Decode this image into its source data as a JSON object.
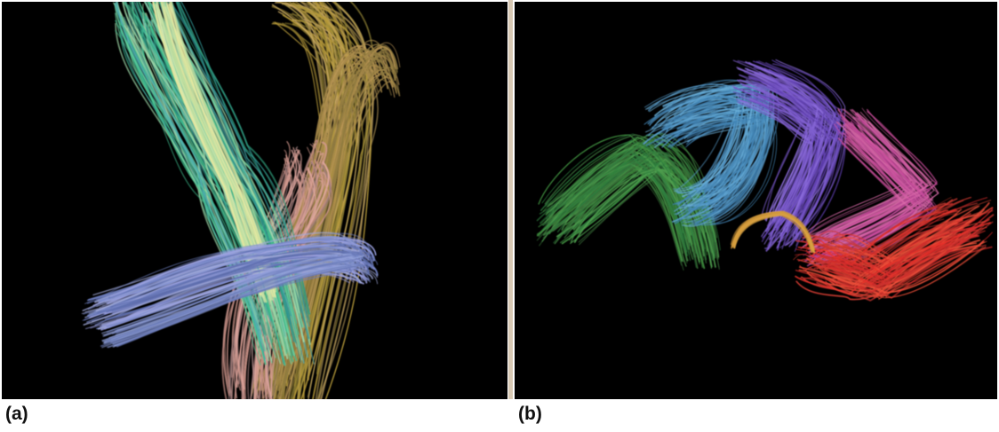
{
  "panels": [
    {
      "label": "(a)",
      "description_colors": [
        "#3fbf8f",
        "#b79a3a",
        "#7f8fd0",
        "#d49a8f"
      ]
    },
    {
      "label": "(b)",
      "description_colors": [
        "#3f8f3f",
        "#5a9fcf",
        "#7f5fcf",
        "#cf4f9f",
        "#e8322a"
      ]
    }
  ]
}
